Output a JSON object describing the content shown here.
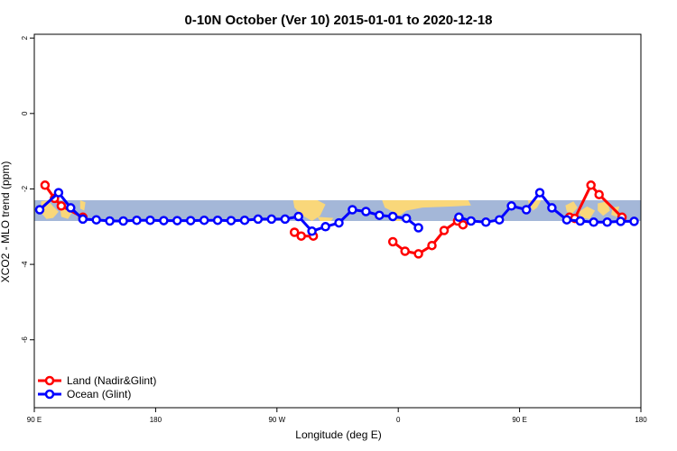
{
  "chart_data": {
    "type": "line",
    "title": "0-10N October (Ver 10)   2015-01-01 to 2020-12-18",
    "xlabel": "Longitude (deg E)",
    "ylabel": "XCO2 - MLO trend (ppm)",
    "xlim": [
      90,
      540
    ],
    "ylim": [
      -7.8,
      2.1
    ],
    "x_tick_values": [
      90,
      180,
      270,
      360,
      450,
      540
    ],
    "x_tick_labels": [
      "90 E",
      "180",
      "90 W",
      "0",
      "90 E",
      "180"
    ],
    "y_tick_values": [
      2,
      0,
      -2,
      -4,
      -6
    ],
    "y_tick_labels": [
      "2",
      "0",
      "-2",
      "-4",
      "-6"
    ],
    "map_band": {
      "y_top": -2.3,
      "y_bottom": -2.85,
      "ocean_color": "#a4b7d8",
      "land_color": "#f9d77a"
    },
    "legend_position": "bottom-left",
    "series": [
      {
        "name": "Land (Nadir&Glint)",
        "color": "#ff0000",
        "segments": [
          [
            [
              98,
              -1.9
            ],
            [
              105,
              -2.25
            ],
            [
              110,
              -2.45
            ],
            [
              126,
              -2.75
            ]
          ],
          [
            [
              283,
              -3.15
            ],
            [
              288,
              -3.25
            ],
            [
              297,
              -3.25
            ]
          ],
          [
            [
              356,
              -3.4
            ],
            [
              365,
              -3.65
            ],
            [
              375,
              -3.72
            ],
            [
              385,
              -3.5
            ],
            [
              394,
              -3.1
            ],
            [
              404,
              -2.85
            ],
            [
              408,
              -2.95
            ]
          ],
          [
            [
              487,
              -2.75
            ],
            [
              491,
              -2.78
            ],
            [
              503,
              -1.9
            ],
            [
              509,
              -2.15
            ],
            [
              526,
              -2.75
            ]
          ]
        ]
      },
      {
        "name": "Ocean (Glint)",
        "color": "#0000ff",
        "segments": [
          [
            [
              94,
              -2.55
            ],
            [
              108,
              -2.1
            ],
            [
              117,
              -2.5
            ],
            [
              126,
              -2.8
            ],
            [
              136,
              -2.82
            ],
            [
              146,
              -2.85
            ],
            [
              156,
              -2.85
            ],
            [
              166,
              -2.83
            ],
            [
              176,
              -2.83
            ],
            [
              186,
              -2.84
            ],
            [
              196,
              -2.84
            ],
            [
              206,
              -2.84
            ],
            [
              216,
              -2.83
            ],
            [
              226,
              -2.83
            ],
            [
              236,
              -2.84
            ],
            [
              246,
              -2.83
            ],
            [
              256,
              -2.8
            ],
            [
              266,
              -2.8
            ],
            [
              276,
              -2.8
            ],
            [
              286,
              -2.73
            ],
            [
              296,
              -3.12
            ],
            [
              306,
              -3.0
            ],
            [
              316,
              -2.9
            ],
            [
              326,
              -2.55
            ],
            [
              336,
              -2.6
            ],
            [
              346,
              -2.7
            ],
            [
              356,
              -2.73
            ],
            [
              366,
              -2.78
            ],
            [
              375,
              -3.03
            ]
          ],
          [
            [
              405,
              -2.75
            ],
            [
              414,
              -2.85
            ],
            [
              425,
              -2.88
            ],
            [
              435,
              -2.82
            ],
            [
              444,
              -2.45
            ],
            [
              455,
              -2.55
            ],
            [
              465,
              -2.1
            ],
            [
              474,
              -2.5
            ],
            [
              485,
              -2.82
            ],
            [
              495,
              -2.85
            ],
            [
              505,
              -2.88
            ],
            [
              515,
              -2.88
            ],
            [
              525,
              -2.86
            ],
            [
              535,
              -2.86
            ]
          ]
        ]
      }
    ]
  }
}
